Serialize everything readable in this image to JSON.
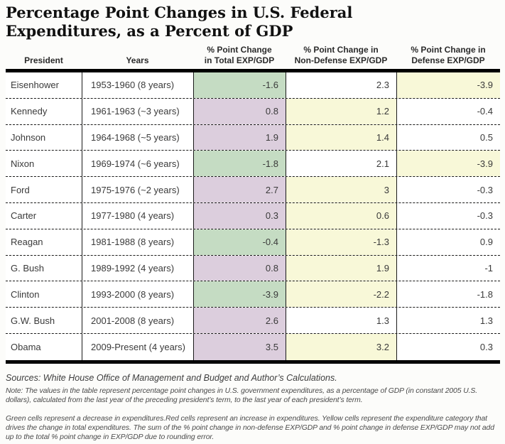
{
  "title": "Percentage Point Changes in U.S. Federal\nExpenditures, as a Percent of GDP",
  "colors": {
    "green": "#c5dcc3",
    "red": "#dccedd",
    "yellow": "#f8f8d8",
    "none": "#ffffff"
  },
  "table": {
    "columns": [
      "President",
      "Years",
      "% Point Change\nin Total EXP/GDP",
      "% Point Change in\nNon-Defense EXP/GDP",
      "% Point Change in\nDefense EXP/GDP"
    ],
    "rows": [
      {
        "president": "Eisenhower",
        "years": "1953-1960 (8 years)",
        "cells": [
          {
            "value": "-1.6",
            "bg": "green"
          },
          {
            "value": "2.3",
            "bg": "none"
          },
          {
            "value": "-3.9",
            "bg": "yellow"
          }
        ]
      },
      {
        "president": "Kennedy",
        "years": "1961-1963 (~3 years)",
        "cells": [
          {
            "value": "0.8",
            "bg": "red"
          },
          {
            "value": "1.2",
            "bg": "yellow"
          },
          {
            "value": "-0.4",
            "bg": "none"
          }
        ]
      },
      {
        "president": "Johnson",
        "years": "1964-1968 (~5 years)",
        "cells": [
          {
            "value": "1.9",
            "bg": "red"
          },
          {
            "value": "1.4",
            "bg": "yellow"
          },
          {
            "value": "0.5",
            "bg": "none"
          }
        ]
      },
      {
        "president": "Nixon",
        "years": "1969-1974 (~6 years)",
        "cells": [
          {
            "value": "-1.8",
            "bg": "green"
          },
          {
            "value": "2.1",
            "bg": "none"
          },
          {
            "value": "-3.9",
            "bg": "yellow"
          }
        ]
      },
      {
        "president": "Ford",
        "years": "1975-1976 (~2 years)",
        "cells": [
          {
            "value": "2.7",
            "bg": "red"
          },
          {
            "value": "3",
            "bg": "yellow"
          },
          {
            "value": "-0.3",
            "bg": "none"
          }
        ]
      },
      {
        "president": "Carter",
        "years": "1977-1980 (4 years)",
        "cells": [
          {
            "value": "0.3",
            "bg": "red"
          },
          {
            "value": "0.6",
            "bg": "yellow"
          },
          {
            "value": "-0.3",
            "bg": "none"
          }
        ]
      },
      {
        "president": "Reagan",
        "years": "1981-1988 (8 years)",
        "cells": [
          {
            "value": "-0.4",
            "bg": "green"
          },
          {
            "value": "-1.3",
            "bg": "yellow"
          },
          {
            "value": "0.9",
            "bg": "none"
          }
        ]
      },
      {
        "president": "G. Bush",
        "years": "1989-1992 (4 years)",
        "cells": [
          {
            "value": "0.8",
            "bg": "red"
          },
          {
            "value": "1.9",
            "bg": "yellow"
          },
          {
            "value": "-1",
            "bg": "none"
          }
        ]
      },
      {
        "president": "Clinton",
        "years": "1993-2000 (8 years)",
        "cells": [
          {
            "value": "-3.9",
            "bg": "green"
          },
          {
            "value": "-2.2",
            "bg": "yellow"
          },
          {
            "value": "-1.8",
            "bg": "none"
          }
        ]
      },
      {
        "president": "G.W. Bush",
        "years": "2001-2008 (8 years)",
        "cells": [
          {
            "value": "2.6",
            "bg": "red"
          },
          {
            "value": "1.3",
            "bg": "none"
          },
          {
            "value": "1.3",
            "bg": "none"
          }
        ]
      },
      {
        "president": "Obama",
        "years": "2009-Present (4 years)",
        "cells": [
          {
            "value": "3.5",
            "bg": "red"
          },
          {
            "value": "3.2",
            "bg": "yellow"
          },
          {
            "value": "0.3",
            "bg": "none"
          }
        ]
      }
    ]
  },
  "footer": {
    "sources": "Sources: White House Office of Management and Budget and Author’s Calculations.",
    "note": "Note: The values in the table represent percentage point changes in U.S. government expenditures, as a percentage of GDP (in constant 2005 U.S. dollars), calculated from the last year of the preceding president’s term, to the last year of each president’s term.",
    "legend": "Green cells represent a decrease in expenditures.Red cells represent an increase in expenditures. Yellow cells represent the expenditure category that drives the change in total expenditures. The sum of the % point change in non-defense EXP/GDP and % point change in defense EXP/GDP may not add up to the total % point change in EXP/GDP due to rounding error."
  }
}
